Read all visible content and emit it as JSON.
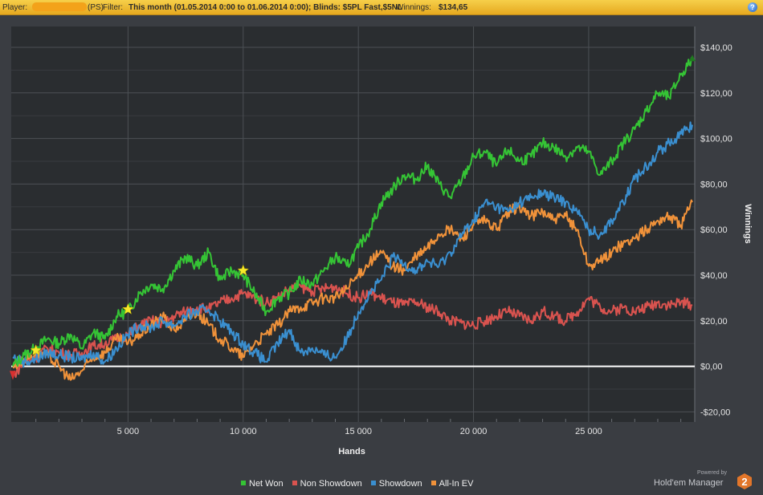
{
  "topbar": {
    "player_label": "Player:",
    "player_suffix": "(PS)",
    "filter_label": "Filter:",
    "filter_value": "This month (01.05.2014 0:00 to 01.06.2014 0:00); Blinds: $5PL Fast,$5NL",
    "winnings_label": "Winnings:",
    "winnings_value": "$134,65",
    "help_glyph": "?"
  },
  "chart_data": {
    "type": "line",
    "xlabel": "Hands",
    "ylabel": "Winnings",
    "xlim": [
      0,
      29500
    ],
    "ylim": [
      -25,
      145
    ],
    "xticks": [
      5000,
      10000,
      15000,
      20000,
      25000
    ],
    "xtick_labels": [
      "5 000",
      "10 000",
      "15 000",
      "20 000",
      "25 000"
    ],
    "yticks": [
      -20,
      0,
      20,
      40,
      60,
      80,
      100,
      120,
      140
    ],
    "ytick_labels": [
      "-$20,00",
      "$0,00",
      "$20,00",
      "$40,00",
      "$60,00",
      "$80,00",
      "$100,00",
      "$120,00",
      "$140,00"
    ],
    "grid": true,
    "legend_position": "bottom",
    "series": [
      {
        "name": "Net Won",
        "color": "#35c435",
        "x": [
          0,
          500,
          1000,
          1500,
          2000,
          2500,
          3000,
          3500,
          4000,
          4500,
          5000,
          5500,
          6000,
          6500,
          7000,
          7500,
          8000,
          8500,
          9000,
          9500,
          10000,
          10500,
          11000,
          11500,
          12000,
          12500,
          13000,
          13500,
          14000,
          14500,
          15000,
          15500,
          16000,
          16500,
          17000,
          17500,
          18000,
          18500,
          19000,
          19500,
          20000,
          20500,
          21000,
          21500,
          22000,
          22500,
          23000,
          23500,
          24000,
          24500,
          25000,
          25500,
          26000,
          26500,
          27000,
          27500,
          28000,
          28500,
          29000,
          29500
        ],
        "values": [
          0,
          5,
          8,
          12,
          10,
          14,
          8,
          15,
          12,
          22,
          24,
          32,
          36,
          34,
          42,
          48,
          44,
          50,
          38,
          42,
          40,
          32,
          24,
          30,
          32,
          38,
          36,
          42,
          48,
          44,
          52,
          60,
          72,
          78,
          84,
          82,
          88,
          80,
          74,
          82,
          92,
          94,
          88,
          95,
          90,
          92,
          98,
          96,
          92,
          96,
          94,
          84,
          90,
          98,
          104,
          112,
          120,
          118,
          128,
          134.65
        ]
      },
      {
        "name": "Non Showdown",
        "color": "#d9534f",
        "x": [
          0,
          500,
          1000,
          1500,
          2000,
          2500,
          3000,
          3500,
          4000,
          4500,
          5000,
          5500,
          6000,
          6500,
          7000,
          7500,
          8000,
          8500,
          9000,
          9500,
          10000,
          10500,
          11000,
          11500,
          12000,
          12500,
          13000,
          13500,
          14000,
          14500,
          15000,
          15500,
          16000,
          16500,
          17000,
          17500,
          18000,
          18500,
          19000,
          19500,
          20000,
          20500,
          21000,
          21500,
          22000,
          22500,
          23000,
          23500,
          24000,
          24500,
          25000,
          25500,
          26000,
          26500,
          27000,
          27500,
          28000,
          28500,
          29000,
          29500
        ],
        "values": [
          -4,
          2,
          4,
          8,
          6,
          5,
          6,
          9,
          10,
          12,
          14,
          18,
          20,
          19,
          22,
          24,
          26,
          25,
          28,
          30,
          32,
          30,
          28,
          30,
          34,
          35,
          33,
          34,
          35,
          32,
          30,
          32,
          30,
          28,
          27,
          28,
          26,
          24,
          20,
          19,
          18,
          20,
          22,
          24,
          22,
          20,
          24,
          22,
          20,
          24,
          30,
          26,
          24,
          26,
          24,
          26,
          28,
          27,
          28,
          27
        ]
      },
      {
        "name": "Showdown",
        "color": "#3a8fd0",
        "x": [
          0,
          500,
          1000,
          1500,
          2000,
          2500,
          3000,
          3500,
          4000,
          4500,
          5000,
          5500,
          6000,
          6500,
          7000,
          7500,
          8000,
          8500,
          9000,
          9500,
          10000,
          10500,
          11000,
          11500,
          12000,
          12500,
          13000,
          13500,
          14000,
          14500,
          15000,
          15500,
          16000,
          16500,
          17000,
          17500,
          18000,
          18500,
          19000,
          19500,
          20000,
          20500,
          21000,
          21500,
          22000,
          22500,
          23000,
          23500,
          24000,
          24500,
          25000,
          25500,
          26000,
          26500,
          27000,
          27500,
          28000,
          28500,
          29000,
          29500
        ],
        "values": [
          4,
          2,
          3,
          6,
          5,
          4,
          3,
          6,
          2,
          8,
          14,
          18,
          17,
          20,
          18,
          22,
          24,
          25,
          20,
          15,
          10,
          6,
          2,
          10,
          16,
          6,
          8,
          5,
          4,
          12,
          24,
          32,
          38,
          48,
          45,
          42,
          46,
          44,
          50,
          58,
          64,
          72,
          70,
          68,
          72,
          74,
          76,
          74,
          72,
          68,
          60,
          58,
          64,
          72,
          82,
          88,
          94,
          98,
          102,
          106
        ]
      },
      {
        "name": "All-In EV",
        "color": "#f0923a",
        "x": [
          0,
          500,
          1000,
          1500,
          2000,
          2500,
          3000,
          3500,
          4000,
          4500,
          5000,
          5500,
          6000,
          6500,
          7000,
          7500,
          8000,
          8500,
          9000,
          9500,
          10000,
          10500,
          11000,
          11500,
          12000,
          12500,
          13000,
          13500,
          14000,
          14500,
          15000,
          15500,
          16000,
          16500,
          17000,
          17500,
          18000,
          18500,
          19000,
          19500,
          20000,
          20500,
          21000,
          21500,
          22000,
          22500,
          23000,
          23500,
          24000,
          24500,
          25000,
          25500,
          26000,
          26500,
          27000,
          27500,
          28000,
          28500,
          29000,
          29500
        ],
        "values": [
          0,
          3,
          6,
          5,
          0,
          -6,
          -2,
          4,
          6,
          12,
          10,
          14,
          18,
          22,
          16,
          20,
          24,
          18,
          12,
          8,
          4,
          10,
          14,
          18,
          24,
          26,
          28,
          30,
          30,
          34,
          40,
          46,
          50,
          44,
          42,
          48,
          52,
          58,
          60,
          56,
          62,
          64,
          60,
          68,
          70,
          66,
          68,
          64,
          66,
          60,
          44,
          46,
          50,
          54,
          56,
          60,
          64,
          66,
          62,
          72
        ]
      }
    ],
    "star_markers": [
      {
        "x": 1000,
        "y": 7
      },
      {
        "x": 5000,
        "y": 25
      },
      {
        "x": 10000,
        "y": 42
      }
    ]
  },
  "legend_items": [
    {
      "label": "Net Won",
      "color": "#35c435"
    },
    {
      "label": "Non Showdown",
      "color": "#d9534f"
    },
    {
      "label": "Showdown",
      "color": "#3a8fd0"
    },
    {
      "label": "All-In EV",
      "color": "#f0923a"
    }
  ],
  "branding": {
    "powered_by": "Powered by",
    "product": "Hold'em Manager",
    "version_badge": "2"
  }
}
